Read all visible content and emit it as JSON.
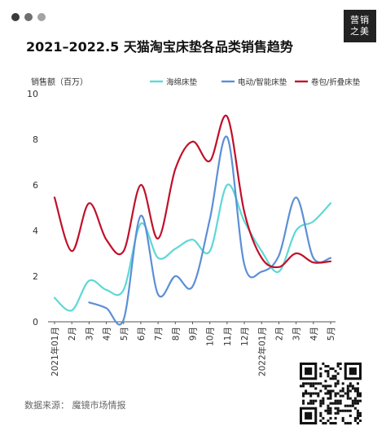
{
  "header": {
    "dot_colors": [
      "#3a3a3a",
      "#6f6f6f",
      "#a3a3a3"
    ],
    "logo_line1": "营销",
    "logo_line2": "之美",
    "title": "2021–2022.5 天猫淘宝床垫各品类销售趋势"
  },
  "footer": {
    "source": "数据来源：  魔镜市场情报",
    "qr_icon": "qr-code-icon"
  },
  "chart_data": {
    "type": "line",
    "title": "2021–2022.5 天猫淘宝床垫各品类销售趋势",
    "ylabel": "销售额（百万）",
    "xlabel": "",
    "ylim": [
      0,
      10
    ],
    "yticks": [
      0,
      2,
      4,
      6,
      8,
      10
    ],
    "categories": [
      "2021年01月",
      "2月",
      "3月",
      "4月",
      "5月",
      "6月",
      "7月",
      "8月",
      "9月",
      "10月",
      "11月",
      "12月",
      "2022年01月",
      "2月",
      "3月",
      "4月",
      "5月"
    ],
    "grid": false,
    "legend_position": "top",
    "series": [
      {
        "name": "海绵床垫",
        "color": "#5dd8d6",
        "values": [
          1.05,
          0.5,
          1.8,
          1.4,
          1.4,
          4.3,
          2.8,
          3.2,
          3.6,
          3.1,
          6.0,
          4.4,
          3.1,
          2.2,
          4.0,
          4.4,
          5.2
        ]
      },
      {
        "name": "电动/智能床垫",
        "color": "#5b8fd6",
        "values": [
          null,
          null,
          0.85,
          0.6,
          0.1,
          4.65,
          1.2,
          2.0,
          1.55,
          4.5,
          8.1,
          2.5,
          2.2,
          2.9,
          5.45,
          2.8,
          2.8
        ]
      },
      {
        "name": "卷包/折叠床垫",
        "color": "#c0102a",
        "values": [
          5.45,
          3.1,
          5.2,
          3.6,
          3.1,
          6.0,
          3.65,
          6.7,
          7.9,
          7.05,
          9.0,
          4.8,
          2.8,
          2.4,
          3.0,
          2.6,
          2.65
        ]
      }
    ]
  }
}
